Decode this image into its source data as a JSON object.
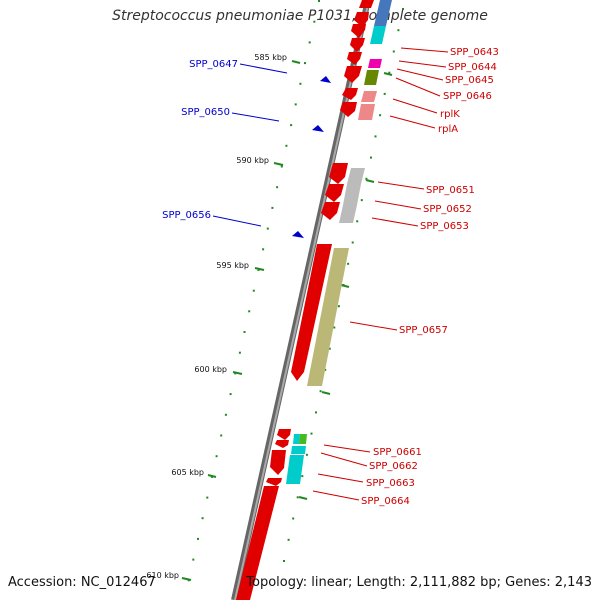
{
  "title": "Streptococcus pneumoniae P1031, complete genome",
  "accession": "Accession: NC_012467",
  "topology": "Topology: linear; Length: 2,111,882 bp; Genes: 2,143",
  "colors": {
    "backbone": "#888888",
    "forward_gene": "#ee0000",
    "reverse_label": "#0000cc",
    "forward_label": "#cc0000",
    "tick": "#228822"
  },
  "scale": {
    "ticks": [
      "585 kbp",
      "590 kbp",
      "595 kbp",
      "600 kbp",
      "605 kbp",
      "610 kbp"
    ]
  },
  "reverse_features": [
    {
      "label": "SPP_0647"
    },
    {
      "label": "SPP_0650"
    },
    {
      "label": "SPP_0656"
    }
  ],
  "forward_features": [
    {
      "label": "SPP_0643"
    },
    {
      "label": "SPP_0644"
    },
    {
      "label": "SPP_0645"
    },
    {
      "label": "SPP_0646"
    },
    {
      "label": "rplK"
    },
    {
      "label": "rplA"
    },
    {
      "label": "SPP_0651"
    },
    {
      "label": "SPP_0652"
    },
    {
      "label": "SPP_0653"
    },
    {
      "label": "SPP_0657"
    },
    {
      "label": "SPP_0661"
    },
    {
      "label": "SPP_0662"
    },
    {
      "label": "SPP_0663"
    },
    {
      "label": "SPP_0664"
    }
  ]
}
